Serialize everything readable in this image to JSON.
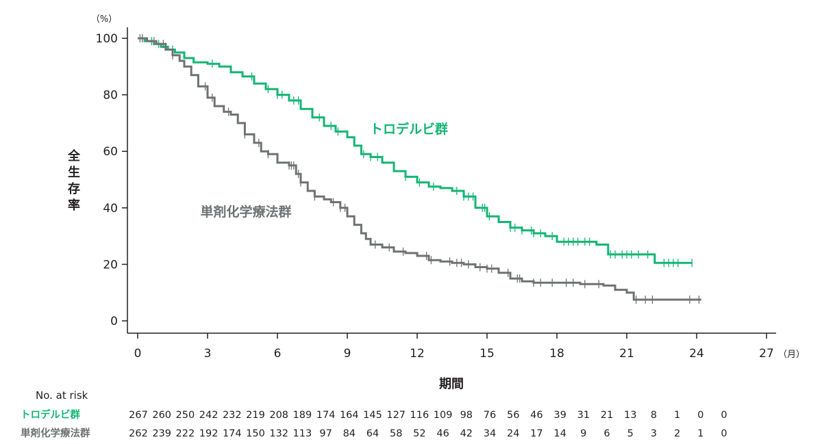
{
  "chart_data": {
    "type": "line",
    "subtype": "kaplan-meier",
    "xlabel": "期間",
    "x_unit": "（月）",
    "ylabel": "全生存率",
    "y_unit": "（%）",
    "xlim": [
      0,
      27
    ],
    "ylim": [
      0,
      100
    ],
    "xticks": [
      0,
      3,
      6,
      9,
      12,
      15,
      18,
      21,
      24,
      27
    ],
    "yticks": [
      0,
      20,
      40,
      60,
      80,
      100
    ],
    "grid": false,
    "series": [
      {
        "name": "トロデルビ群",
        "color": "#13b574",
        "points": [
          [
            0,
            100
          ],
          [
            0.3,
            99
          ],
          [
            0.7,
            98
          ],
          [
            1.0,
            97
          ],
          [
            1.3,
            96
          ],
          [
            1.6,
            95
          ],
          [
            2.0,
            93
          ],
          [
            2.4,
            91.5
          ],
          [
            3.0,
            91
          ],
          [
            3.5,
            90
          ],
          [
            4.0,
            88
          ],
          [
            4.5,
            86.5
          ],
          [
            5.0,
            84
          ],
          [
            5.5,
            82
          ],
          [
            6.0,
            80
          ],
          [
            6.5,
            78
          ],
          [
            7.0,
            75
          ],
          [
            7.5,
            72
          ],
          [
            8.0,
            69
          ],
          [
            8.5,
            67
          ],
          [
            9.0,
            65
          ],
          [
            9.3,
            62
          ],
          [
            9.6,
            59
          ],
          [
            10.0,
            58
          ],
          [
            10.5,
            56
          ],
          [
            11.0,
            53
          ],
          [
            11.5,
            51
          ],
          [
            12.0,
            49
          ],
          [
            12.5,
            47.5
          ],
          [
            13.0,
            47
          ],
          [
            13.5,
            46
          ],
          [
            14.0,
            44
          ],
          [
            14.5,
            40
          ],
          [
            15.0,
            37
          ],
          [
            15.5,
            35
          ],
          [
            16.0,
            33
          ],
          [
            16.5,
            32
          ],
          [
            17.0,
            31
          ],
          [
            17.5,
            30
          ],
          [
            18.0,
            28
          ],
          [
            19.0,
            28
          ],
          [
            19.7,
            27
          ],
          [
            20.2,
            23.5
          ],
          [
            21.0,
            23.5
          ],
          [
            22.0,
            23.5
          ],
          [
            22.2,
            20.5
          ],
          [
            23.8,
            20.5
          ]
        ],
        "censor_x": [
          0.2,
          0.6,
          0.9,
          1.2,
          1.5,
          3.2,
          4.9,
          5.6,
          6.0,
          6.2,
          6.7,
          6.9,
          7.8,
          8.3,
          8.6,
          9.7,
          10.0,
          10.3,
          11.5,
          12.1,
          12.7,
          13.7,
          14.0,
          14.2,
          14.4,
          14.8,
          14.9,
          15.1,
          16.0,
          16.2,
          16.5,
          16.9,
          17.0,
          17.3,
          17.8,
          18.3,
          18.5,
          18.7,
          18.9,
          19.2,
          19.4,
          20.3,
          20.5,
          20.8,
          21.0,
          21.2,
          21.5,
          21.9,
          22.6,
          22.8,
          23.0,
          23.2,
          23.8
        ],
        "at_risk": [
          "267",
          "260",
          "250",
          "242",
          "232",
          "219",
          "208",
          "189",
          "174",
          "164",
          "145",
          "127",
          "116",
          "109",
          "98",
          "76",
          "56",
          "46",
          "39",
          "31",
          "21",
          "13",
          "8",
          "1",
          "0",
          "0"
        ]
      },
      {
        "name": "単剤化学療法群",
        "color": "#6e7272",
        "points": [
          [
            0,
            100
          ],
          [
            0.4,
            99
          ],
          [
            0.8,
            98
          ],
          [
            1.2,
            96
          ],
          [
            1.5,
            94
          ],
          [
            1.8,
            92
          ],
          [
            2.0,
            90
          ],
          [
            2.3,
            87
          ],
          [
            2.6,
            83
          ],
          [
            3.0,
            79
          ],
          [
            3.3,
            76
          ],
          [
            3.7,
            74
          ],
          [
            4.0,
            73
          ],
          [
            4.3,
            70
          ],
          [
            4.6,
            66
          ],
          [
            5.0,
            63
          ],
          [
            5.3,
            60
          ],
          [
            5.6,
            59
          ],
          [
            6.0,
            56
          ],
          [
            6.5,
            55
          ],
          [
            6.8,
            52
          ],
          [
            7.0,
            49
          ],
          [
            7.3,
            46
          ],
          [
            7.6,
            44
          ],
          [
            8.0,
            43
          ],
          [
            8.3,
            42
          ],
          [
            8.7,
            40
          ],
          [
            9.0,
            37
          ],
          [
            9.3,
            34
          ],
          [
            9.6,
            31
          ],
          [
            9.8,
            29
          ],
          [
            10.0,
            27
          ],
          [
            10.5,
            26
          ],
          [
            11.0,
            24.5
          ],
          [
            11.5,
            24
          ],
          [
            12.0,
            23
          ],
          [
            12.5,
            21.5
          ],
          [
            13.0,
            21
          ],
          [
            13.5,
            20.5
          ],
          [
            14.0,
            20
          ],
          [
            14.5,
            19
          ],
          [
            15.0,
            18.5
          ],
          [
            15.5,
            17
          ],
          [
            16.0,
            15
          ],
          [
            16.5,
            14
          ],
          [
            17.0,
            13.5
          ],
          [
            18.0,
            13.5
          ],
          [
            19.0,
            13
          ],
          [
            20.0,
            12.5
          ],
          [
            20.5,
            11
          ],
          [
            21.0,
            10
          ],
          [
            21.3,
            7.5
          ],
          [
            24.2,
            7.5
          ]
        ],
        "censor_x": [
          0.1,
          0.2,
          0.7,
          1.1,
          1.5,
          2.9,
          3.2,
          3.9,
          4.6,
          5.2,
          5.6,
          6.5,
          6.6,
          6.7,
          6.9,
          7.0,
          7.6,
          8.4,
          8.7,
          8.9,
          10.2,
          10.8,
          11.4,
          12.4,
          12.6,
          13.4,
          13.7,
          13.9,
          14.2,
          14.7,
          15.0,
          15.2,
          15.9,
          16.3,
          16.4,
          17.0,
          17.3,
          17.8,
          18.4,
          18.7,
          19.2,
          19.8,
          21.4,
          21.8,
          22.1,
          23.7,
          24.1
        ],
        "at_risk": [
          "262",
          "239",
          "222",
          "192",
          "174",
          "150",
          "132",
          "113",
          "97",
          "84",
          "64",
          "58",
          "52",
          "46",
          "42",
          "34",
          "24",
          "17",
          "14",
          "9",
          "6",
          "5",
          "3",
          "2",
          "1",
          "0"
        ]
      }
    ],
    "at_risk_header": "No. at risk"
  }
}
